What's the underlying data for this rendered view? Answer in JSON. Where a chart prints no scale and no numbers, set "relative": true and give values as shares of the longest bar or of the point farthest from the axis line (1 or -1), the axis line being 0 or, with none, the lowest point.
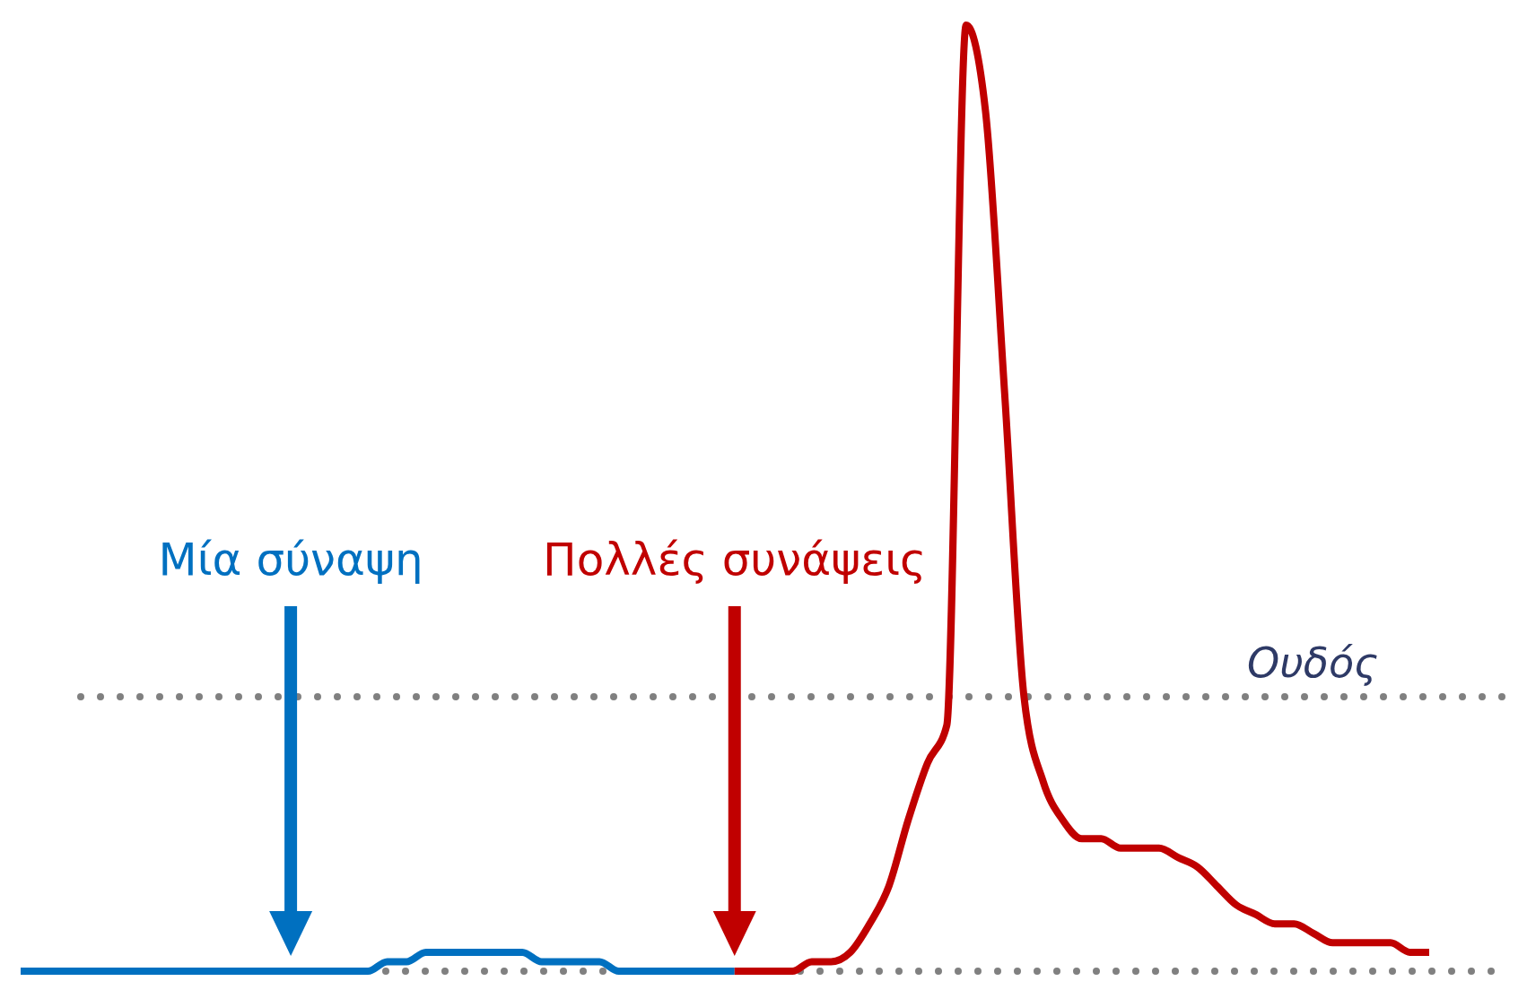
{
  "chart_data": {
    "type": "line",
    "relative": true,
    "line_style": "solid",
    "categories": [
      null,
      null,
      null,
      null,
      null,
      null,
      null,
      null,
      null,
      null,
      null,
      null,
      null,
      null,
      null,
      null,
      null,
      null,
      null,
      null,
      null,
      null,
      null,
      null,
      null,
      null,
      null,
      null,
      null,
      null,
      null,
      null,
      null,
      null,
      null,
      null,
      null,
      null,
      null,
      null,
      null,
      null,
      null,
      null,
      null,
      null,
      null,
      null,
      null,
      null,
      null,
      null,
      null,
      null,
      null,
      null,
      null,
      null,
      null,
      null,
      null,
      null,
      null,
      null,
      null,
      null,
      null,
      null,
      null,
      null,
      null,
      null,
      null,
      null
    ],
    "series": [
      {
        "color": "#0070c0",
        "values": [
          0,
          0,
          0,
          0,
          0,
          0,
          0,
          0,
          0,
          0,
          0,
          0,
          0,
          0,
          0,
          0,
          0,
          0,
          0,
          0.01,
          0.01,
          0.02,
          0.02,
          0.02,
          0.02,
          0.02,
          0.02,
          0.01,
          0.01,
          0.01,
          0.01,
          0,
          0,
          0,
          0,
          0,
          0,
          0,
          null,
          null,
          null,
          null,
          null,
          null,
          null,
          null,
          null,
          null,
          null,
          null,
          null,
          null,
          null,
          null,
          null,
          null,
          null,
          null,
          null,
          null,
          null,
          null,
          null,
          null,
          null,
          null,
          null,
          null,
          null,
          null,
          null,
          null,
          null,
          null
        ]
      },
      {
        "color": "#c00000",
        "values": [
          null,
          null,
          null,
          null,
          null,
          null,
          null,
          null,
          null,
          null,
          null,
          null,
          null,
          null,
          null,
          null,
          null,
          null,
          null,
          null,
          null,
          null,
          null,
          null,
          null,
          null,
          null,
          null,
          null,
          null,
          null,
          null,
          null,
          null,
          null,
          null,
          null,
          0,
          0,
          0,
          0,
          0.01,
          0.01,
          0.02,
          0.05,
          0.09,
          0.16,
          0.22,
          0.26,
          1,
          0.91,
          0.61,
          0.29,
          0.2,
          0.16,
          0.14,
          0.14,
          0.13,
          0.13,
          0.13,
          0.12,
          0.11,
          0.09,
          0.07,
          0.06,
          0.05,
          0.05,
          0.04,
          0.03,
          0.03,
          0.03,
          0.03,
          0.02,
          0.02
        ]
      }
    ],
    "ref_lines": [
      {
        "axis": "y",
        "value": 0,
        "color": "#808080",
        "line_style": "dotted"
      },
      {
        "axis": "y",
        "value": 0.29,
        "label": "Ουδός",
        "color": "#808080",
        "line_style": "dotted"
      }
    ],
    "annotations": [
      "Μία σύναψη",
      "Πολλές συνάψεις"
    ]
  }
}
